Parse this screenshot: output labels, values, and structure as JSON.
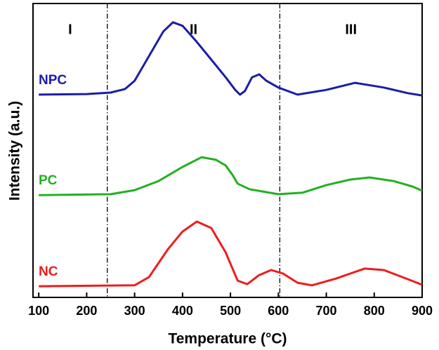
{
  "chart_data": {
    "type": "line",
    "x_label": "Temperature (°C)",
    "y_label": "Intensity (a.u.)",
    "xlim": [
      88,
      900
    ],
    "ylim": [
      0,
      100
    ],
    "xticks": [
      100,
      200,
      300,
      400,
      500,
      600,
      700,
      800,
      900
    ],
    "dividers": [
      243,
      603
    ],
    "regions": [
      "I",
      "II",
      "III"
    ],
    "series": [
      {
        "name": "NPC",
        "color": "#1c1ca8",
        "x": [
          100,
          200,
          250,
          280,
          300,
          330,
          360,
          380,
          400,
          430,
          460,
          490,
          510,
          520,
          530,
          545,
          560,
          575,
          600,
          640,
          700,
          760,
          820,
          870,
          900
        ],
        "values": [
          69.0,
          69.2,
          69.7,
          70.9,
          73.7,
          82.1,
          90.5,
          93.6,
          92.4,
          86.9,
          80.9,
          74.9,
          70.6,
          69.0,
          70.2,
          74.9,
          75.9,
          73.7,
          71.4,
          69.0,
          70.6,
          73.0,
          71.4,
          69.5,
          68.7
        ]
      },
      {
        "name": "PC",
        "color": "#22b022",
        "x": [
          100,
          250,
          300,
          350,
          400,
          440,
          470,
          490,
          505,
          515,
          540,
          600,
          650,
          700,
          750,
          790,
          840,
          880,
          900
        ],
        "values": [
          34.8,
          35.1,
          36.5,
          39.6,
          44.4,
          47.7,
          46.8,
          44.9,
          41.5,
          38.7,
          36.8,
          35.1,
          35.6,
          38.2,
          40.1,
          40.8,
          39.6,
          37.7,
          36.3
        ]
      },
      {
        "name": "NC",
        "color": "#ee1c1c",
        "x": [
          100,
          300,
          330,
          370,
          400,
          430,
          460,
          490,
          515,
          535,
          560,
          585,
          610,
          640,
          670,
          720,
          780,
          820,
          870,
          900
        ],
        "values": [
          3.8,
          4.1,
          6.9,
          16.5,
          22.4,
          25.8,
          23.6,
          15.3,
          5.7,
          4.5,
          7.6,
          9.3,
          8.1,
          5.0,
          4.1,
          6.4,
          9.8,
          9.3,
          6.2,
          4.3
        ]
      }
    ]
  }
}
